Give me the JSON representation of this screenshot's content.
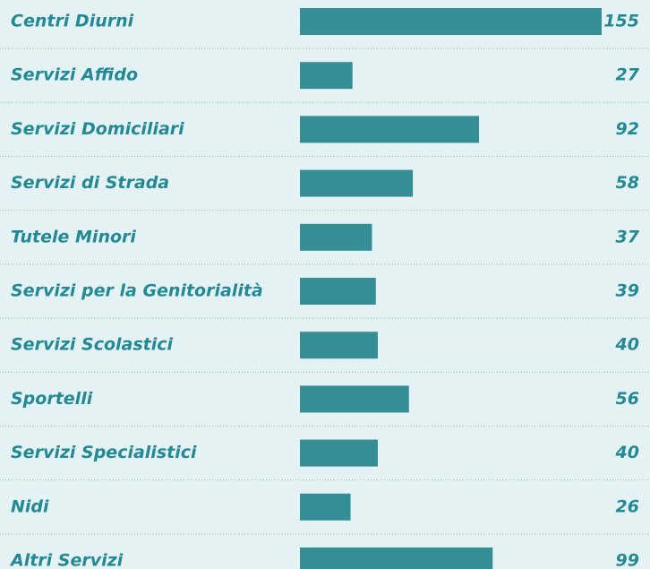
{
  "chart_data": {
    "type": "bar",
    "orientation": "horizontal",
    "categories": [
      "Centri Diurni",
      "Servizi Affido",
      "Servizi Domiciliari",
      "Servizi di Strada",
      "Tutele Minori",
      "Servizi per la Genitorialità",
      "Servizi Scolastici",
      "Sportelli",
      "Servizi Specialistici",
      "Nidi",
      "Altri Servizi"
    ],
    "values": [
      155,
      27,
      92,
      58,
      37,
      39,
      40,
      56,
      40,
      26,
      99
    ],
    "color": "#358e96"
  }
}
